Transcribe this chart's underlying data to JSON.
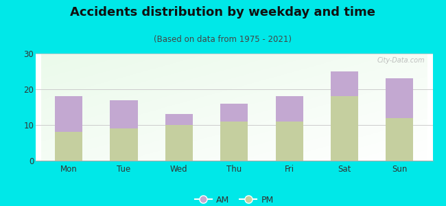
{
  "title": "Accidents distribution by weekday and time",
  "subtitle": "(Based on data from 1975 - 2021)",
  "categories": [
    "Mon",
    "Tue",
    "Wed",
    "Thu",
    "Fri",
    "Sat",
    "Sun"
  ],
  "pm_values": [
    8,
    9,
    10,
    11,
    11,
    18,
    12
  ],
  "am_values": [
    10,
    8,
    3,
    5,
    7,
    7,
    11
  ],
  "am_color": "#c3a8d1",
  "pm_color": "#c5cf9f",
  "background_color": "#00e8e8",
  "ylim": [
    0,
    30
  ],
  "yticks": [
    0,
    10,
    20,
    30
  ],
  "title_fontsize": 13,
  "subtitle_fontsize": 8.5,
  "tick_fontsize": 8.5,
  "legend_fontsize": 9,
  "watermark": "City-Data.com"
}
